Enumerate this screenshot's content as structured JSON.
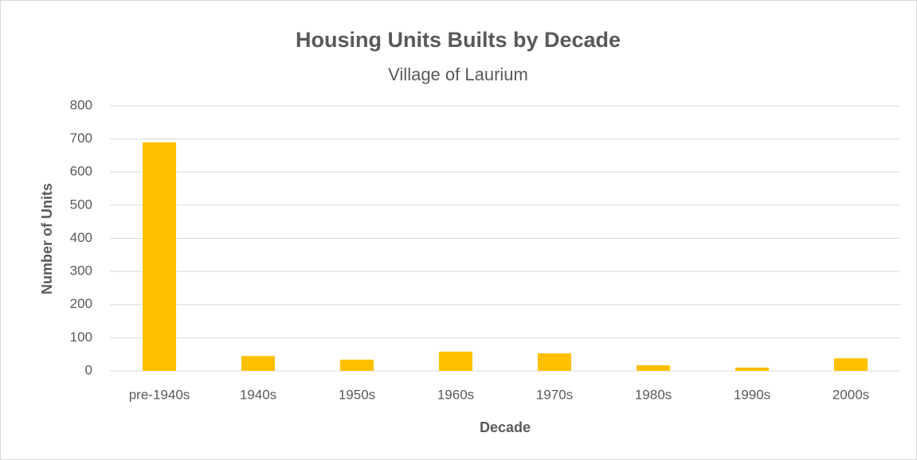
{
  "chart_data": {
    "type": "bar",
    "title": "Housing Units Builts by Decade",
    "subtitle": "Village of Laurium",
    "x_label": "Decade",
    "y_label": "Number of Units",
    "categories": [
      "pre-1940s",
      "1940s",
      "1950s",
      "1960s",
      "1970s",
      "1980s",
      "1990s",
      "2000s"
    ],
    "values": [
      690,
      45,
      34,
      58,
      53,
      17,
      10,
      38
    ],
    "color": "#ffc000",
    "ylim": [
      0,
      800
    ],
    "yticks": [
      0,
      100,
      200,
      300,
      400,
      500,
      600,
      700,
      800
    ],
    "grid": true
  }
}
